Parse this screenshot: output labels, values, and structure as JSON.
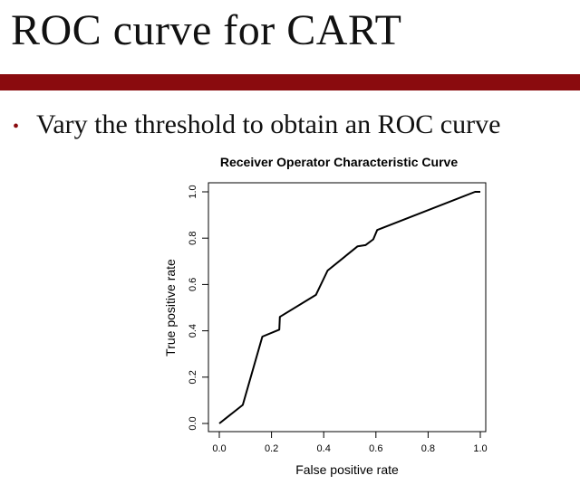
{
  "slide": {
    "title": "ROC curve for CART",
    "bullet": "Vary the threshold to obtain an ROC curve",
    "accent_color": "#8a0b0e"
  },
  "chart_data": {
    "type": "line",
    "title": "Receiver Operator Characteristic Curve",
    "xlabel": "False positive rate",
    "ylabel": "True positive rate",
    "xlim": [
      0,
      1
    ],
    "ylim": [
      0,
      1
    ],
    "xticks": [
      "0.0",
      "0.2",
      "0.4",
      "0.6",
      "0.8",
      "1.0"
    ],
    "yticks": [
      "0.0",
      "0.2",
      "0.4",
      "0.6",
      "0.8",
      "1.0"
    ],
    "grid": false,
    "series": [
      {
        "x": [
          0.0,
          0.09,
          0.165,
          0.23,
          0.232,
          0.37,
          0.415,
          0.53,
          0.56,
          0.59,
          0.605,
          0.98,
          1.0
        ],
        "y": [
          0.0,
          0.08,
          0.375,
          0.405,
          0.46,
          0.555,
          0.66,
          0.765,
          0.77,
          0.795,
          0.835,
          1.0,
          1.0
        ]
      }
    ]
  }
}
